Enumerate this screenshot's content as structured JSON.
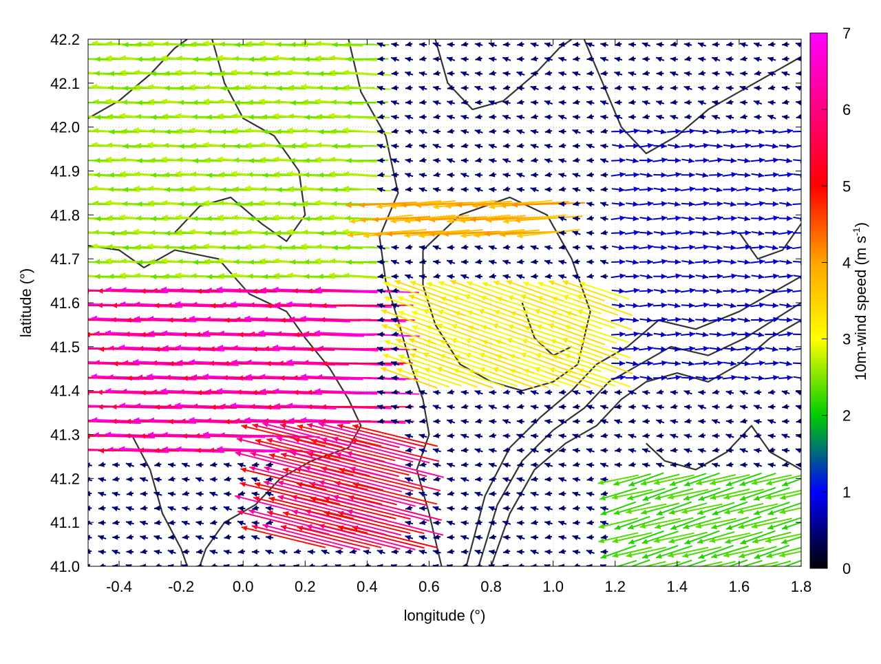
{
  "plot": {
    "xlabel": "longitude (°)",
    "ylabel": "latitude (°)",
    "colorbar_label": "10m-wind speed (m s",
    "colorbar_label_sup": "-1",
    "colorbar_label_end": ")"
  },
  "chart_data": {
    "type": "vector field with contour overlay",
    "xlim": [
      -0.5,
      1.8
    ],
    "ylim": [
      41.0,
      42.2
    ],
    "x_ticks": [
      "-0.4",
      "-0.2",
      "0.0",
      "0.2",
      "0.4",
      "0.6",
      "0.8",
      "1.0",
      "1.2",
      "1.4",
      "1.6",
      "1.8"
    ],
    "x_tick_values": [
      -0.4,
      -0.2,
      0.0,
      0.2,
      0.4,
      0.6,
      0.8,
      1.0,
      1.2,
      1.4,
      1.6,
      1.8
    ],
    "y_ticks": [
      "41.0",
      "41.1",
      "41.2",
      "41.3",
      "41.4",
      "41.5",
      "41.6",
      "41.7",
      "41.8",
      "41.9",
      "42.0",
      "42.1",
      "42.2"
    ],
    "y_tick_values": [
      41.0,
      41.1,
      41.2,
      41.3,
      41.4,
      41.5,
      41.6,
      41.7,
      41.8,
      41.9,
      42.0,
      42.1,
      42.2
    ],
    "grid": true,
    "colorbar": {
      "range": [
        0,
        7
      ],
      "ticks": [
        "0",
        "1",
        "2",
        "3",
        "4",
        "5",
        "6",
        "7"
      ],
      "tick_values": [
        0,
        1,
        2,
        3,
        4,
        5,
        6,
        7
      ],
      "colors": [
        "#000000",
        "#0000ff",
        "#00cc00",
        "#ffff00",
        "#ffa500",
        "#ff0000",
        "#ff00ff"
      ],
      "placement": "right"
    },
    "vector_regions": [
      {
        "x_range": [
          -0.5,
          0.4
        ],
        "y_range": [
          41.25,
          41.65
        ],
        "u": -6.5,
        "v": 0.1
      },
      {
        "x_range": [
          0.1,
          0.5
        ],
        "y_range": [
          41.05,
          41.3
        ],
        "u": -6,
        "v": 1.5
      },
      {
        "x_range": [
          -0.5,
          0.4
        ],
        "y_range": [
          41.65,
          42.2
        ],
        "u": -3,
        "v": 0.1
      },
      {
        "x_range": [
          0.5,
          1.2
        ],
        "y_range": [
          41.4,
          41.65
        ],
        "u": -3.5,
        "v": 1.2
      },
      {
        "x_range": [
          0.4,
          1.0
        ],
        "y_range": [
          41.75,
          41.85
        ],
        "u": -4.5,
        "v": -0.3
      },
      {
        "x_range": [
          1.2,
          1.8
        ],
        "y_range": [
          41.0,
          41.2
        ],
        "u": -2.5,
        "v": -0.7
      },
      {
        "x_range": [
          1.2,
          1.8
        ],
        "y_range": [
          41.4,
          42.0
        ],
        "u": 0.9,
        "v": 0
      }
    ],
    "contours": [
      [
        [
          -0.5,
          41.73
        ],
        [
          -0.4,
          41.72
        ],
        [
          -0.32,
          41.68
        ],
        [
          -0.22,
          41.72
        ],
        [
          -0.08,
          41.7
        ],
        [
          0.02,
          41.62
        ],
        [
          0.14,
          41.58
        ],
        [
          0.2,
          41.52
        ],
        [
          0.28,
          41.45
        ],
        [
          0.34,
          41.38
        ],
        [
          0.38,
          41.32
        ],
        [
          0.34,
          41.27
        ],
        [
          0.22,
          41.24
        ],
        [
          0.12,
          41.2
        ],
        [
          0.04,
          41.14
        ],
        [
          -0.06,
          41.1
        ],
        [
          -0.12,
          41.04
        ],
        [
          -0.14,
          41.0
        ]
      ],
      [
        [
          0.34,
          42.2
        ],
        [
          0.38,
          42.08
        ],
        [
          0.46,
          41.98
        ],
        [
          0.5,
          41.85
        ],
        [
          0.44,
          41.75
        ],
        [
          0.46,
          41.65
        ],
        [
          0.5,
          41.56
        ],
        [
          0.54,
          41.46
        ],
        [
          0.58,
          41.38
        ],
        [
          0.6,
          41.3
        ],
        [
          0.56,
          41.22
        ],
        [
          0.6,
          41.12
        ],
        [
          0.64,
          41.0
        ]
      ],
      [
        [
          0.58,
          41.72
        ],
        [
          0.7,
          41.8
        ],
        [
          0.86,
          41.84
        ],
        [
          0.98,
          41.8
        ],
        [
          1.06,
          41.7
        ],
        [
          1.12,
          41.58
        ],
        [
          1.08,
          41.46
        ],
        [
          1.0,
          41.42
        ],
        [
          0.9,
          41.4
        ],
        [
          0.8,
          41.42
        ],
        [
          0.7,
          41.46
        ],
        [
          0.62,
          41.55
        ],
        [
          0.58,
          41.64
        ],
        [
          0.58,
          41.72
        ]
      ],
      [
        [
          0.8,
          41.0
        ],
        [
          0.86,
          41.12
        ],
        [
          0.94,
          41.22
        ],
        [
          1.04,
          41.28
        ],
        [
          1.14,
          41.32
        ],
        [
          1.22,
          41.38
        ],
        [
          1.3,
          41.42
        ],
        [
          1.4,
          41.44
        ],
        [
          1.5,
          41.42
        ],
        [
          1.6,
          41.46
        ],
        [
          1.7,
          41.52
        ],
        [
          1.8,
          41.56
        ]
      ],
      [
        [
          0.76,
          41.0
        ],
        [
          0.82,
          41.14
        ],
        [
          0.9,
          41.24
        ],
        [
          1.0,
          41.31
        ],
        [
          1.1,
          41.36
        ],
        [
          1.18,
          41.42
        ],
        [
          1.28,
          41.46
        ],
        [
          1.38,
          41.5
        ],
        [
          1.5,
          41.48
        ],
        [
          1.62,
          41.52
        ],
        [
          1.8,
          41.6
        ]
      ],
      [
        [
          0.72,
          41.0
        ],
        [
          0.78,
          41.16
        ],
        [
          0.86,
          41.27
        ],
        [
          0.96,
          41.34
        ],
        [
          1.06,
          41.4
        ],
        [
          1.14,
          41.46
        ],
        [
          1.24,
          41.5
        ],
        [
          1.34,
          41.56
        ],
        [
          1.46,
          41.54
        ],
        [
          1.6,
          41.58
        ],
        [
          1.8,
          41.66
        ]
      ],
      [
        [
          0.62,
          42.2
        ],
        [
          0.66,
          42.1
        ],
        [
          0.74,
          42.04
        ],
        [
          0.84,
          42.06
        ],
        [
          0.94,
          42.12
        ],
        [
          1.02,
          42.18
        ],
        [
          1.06,
          42.2
        ]
      ],
      [
        [
          1.1,
          42.2
        ],
        [
          1.16,
          42.1
        ],
        [
          1.22,
          42.0
        ],
        [
          1.3,
          41.94
        ],
        [
          1.4,
          41.98
        ],
        [
          1.5,
          42.04
        ],
        [
          1.6,
          42.08
        ],
        [
          1.7,
          42.12
        ],
        [
          1.8,
          42.16
        ]
      ],
      [
        [
          -0.5,
          42.02
        ],
        [
          -0.4,
          42.06
        ],
        [
          -0.3,
          42.12
        ],
        [
          -0.22,
          42.18
        ],
        [
          -0.18,
          42.2
        ]
      ],
      [
        [
          -0.1,
          42.2
        ],
        [
          -0.06,
          42.1
        ],
        [
          0.0,
          42.02
        ],
        [
          0.1,
          41.98
        ],
        [
          0.18,
          41.9
        ],
        [
          0.2,
          41.8
        ],
        [
          0.14,
          41.74
        ],
        [
          0.06,
          41.78
        ],
        [
          -0.04,
          41.84
        ],
        [
          -0.14,
          41.82
        ],
        [
          -0.22,
          41.76
        ]
      ],
      [
        [
          1.3,
          41.28
        ],
        [
          1.36,
          41.24
        ],
        [
          1.46,
          41.22
        ],
        [
          1.56,
          41.26
        ],
        [
          1.64,
          41.32
        ],
        [
          1.7,
          41.26
        ],
        [
          1.8,
          41.22
        ]
      ],
      [
        [
          -0.36,
          41.3
        ],
        [
          -0.3,
          41.22
        ],
        [
          -0.26,
          41.12
        ],
        [
          -0.2,
          41.04
        ],
        [
          -0.18,
          41.0
        ]
      ],
      [
        [
          0.9,
          41.6
        ],
        [
          0.94,
          41.52
        ],
        [
          1.0,
          41.48
        ],
        [
          1.06,
          41.5
        ]
      ],
      [
        [
          1.6,
          41.76
        ],
        [
          1.66,
          41.7
        ],
        [
          1.74,
          41.72
        ],
        [
          1.8,
          41.78
        ]
      ]
    ]
  }
}
